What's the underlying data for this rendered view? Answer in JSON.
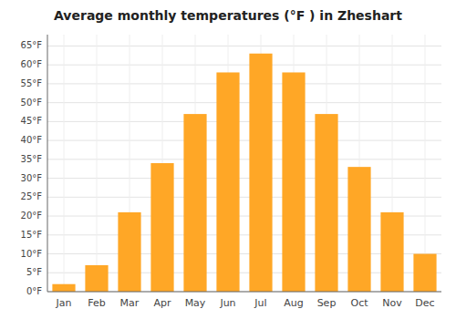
{
  "chart_data": {
    "type": "bar",
    "title": "Average monthly temperatures (°F ) in Zheshart",
    "categories": [
      "Jan",
      "Feb",
      "Mar",
      "Apr",
      "May",
      "Jun",
      "Jul",
      "Aug",
      "Sep",
      "Oct",
      "Nov",
      "Dec"
    ],
    "values": [
      2,
      7,
      21,
      34,
      47,
      58,
      63,
      58,
      47,
      33,
      21,
      10
    ],
    "color": "#FFA726",
    "ylim": [
      0,
      68
    ],
    "yticks": [
      {
        "value": 0,
        "label": "0°F"
      },
      {
        "value": 5,
        "label": "5°F"
      },
      {
        "value": 10,
        "label": "10°F"
      },
      {
        "value": 15,
        "label": "15°F"
      },
      {
        "value": 20,
        "label": "20°F"
      },
      {
        "value": 25,
        "label": "25°F"
      },
      {
        "value": 30,
        "label": "30°F"
      },
      {
        "value": 35,
        "label": "35°F"
      },
      {
        "value": 40,
        "label": "40°F"
      },
      {
        "value": 45,
        "label": "45°F"
      },
      {
        "value": 50,
        "label": "50°F"
      },
      {
        "value": 55,
        "label": "55°F"
      },
      {
        "value": 60,
        "label": "60°F"
      },
      {
        "value": 65,
        "label": "65°F"
      }
    ],
    "grid": true
  }
}
